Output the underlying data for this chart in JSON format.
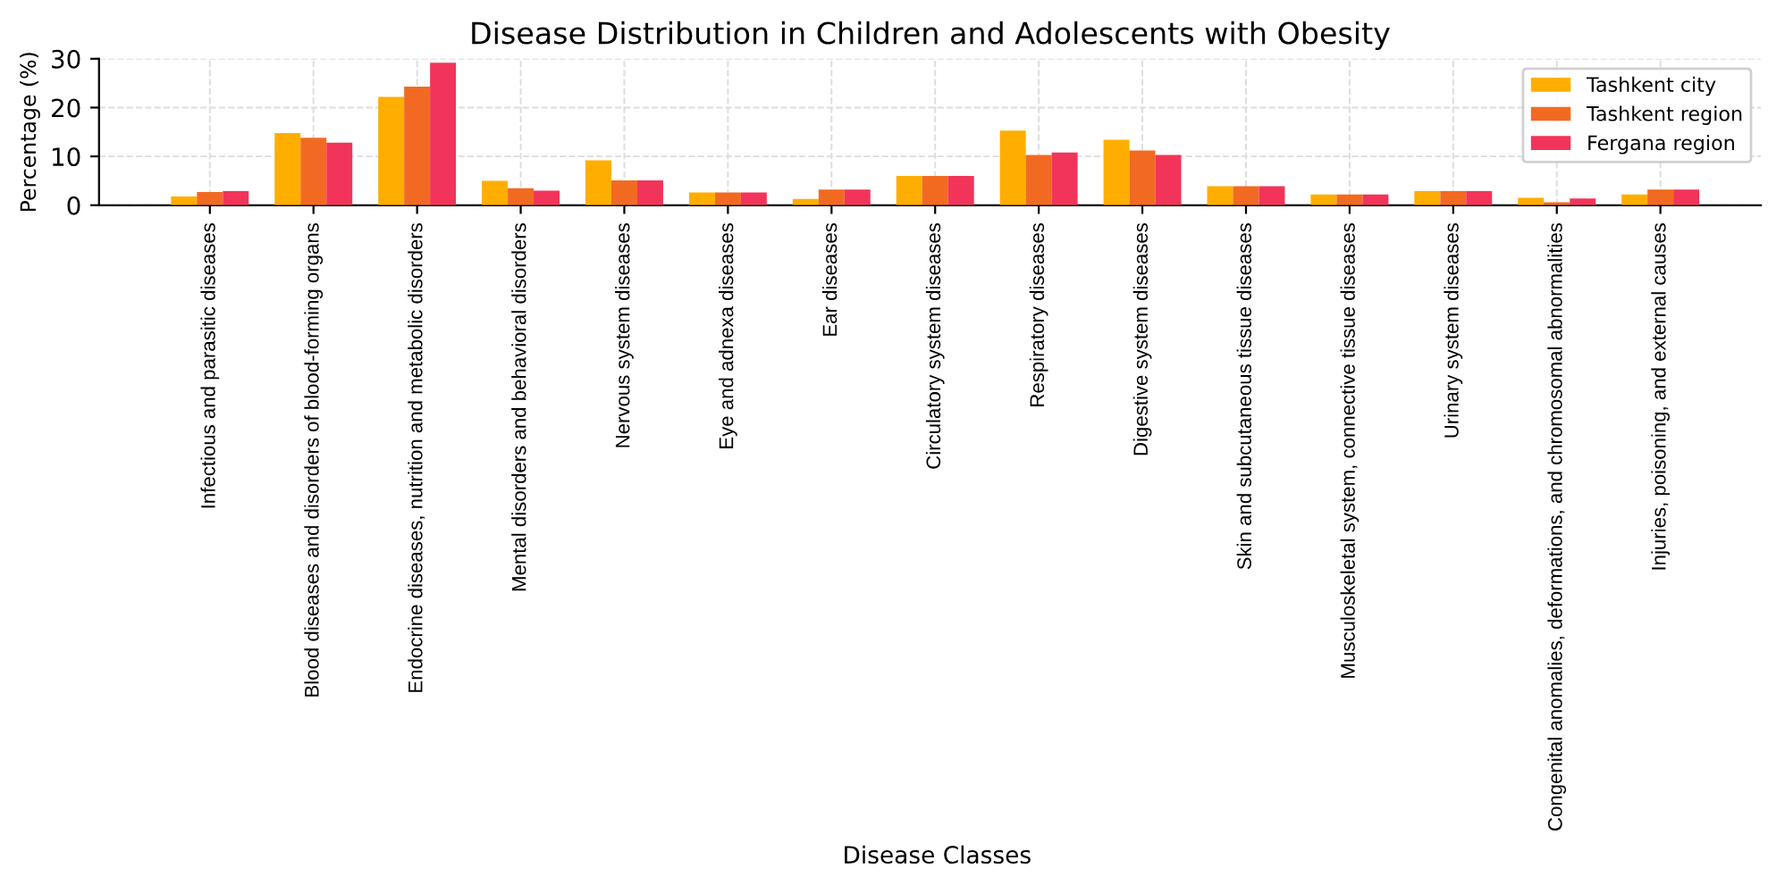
{
  "chart_data": {
    "type": "bar",
    "title": "Disease Distribution in Children and Adolescents with Obesity",
    "xlabel": "Disease Classes",
    "ylabel": "Percentage (%)",
    "categories": [
      "Infectious and parasitic diseases",
      "Blood diseases and disorders of blood-forming organs",
      "Endocrine diseases, nutrition and metabolic disorders",
      "Mental disorders and behavioral disorders",
      "Nervous system diseases",
      "Eye and adnexa diseases",
      "Ear diseases",
      "Circulatory system diseases",
      "Respiratory diseases",
      "Digestive system diseases",
      "Skin and subcutaneous tissue diseases",
      "Musculoskeletal system, connective tissue diseases",
      "Urinary system diseases",
      "Congenital anomalies, deformations, and chromosomal abnormalities",
      "Injuries, poisoning, and external causes"
    ],
    "series": [
      {
        "name": "Tashkent city",
        "color": "#ffae00",
        "values": [
          1.8,
          14.8,
          22.2,
          5.0,
          9.2,
          2.6,
          1.3,
          6.0,
          15.3,
          13.4,
          3.9,
          2.2,
          2.9,
          1.5,
          2.2
        ]
      },
      {
        "name": "Tashkent region",
        "color": "#f26a22",
        "values": [
          2.7,
          13.8,
          24.3,
          3.5,
          5.1,
          2.6,
          3.2,
          6.0,
          10.3,
          11.2,
          3.9,
          2.2,
          2.9,
          0.6,
          3.2
        ]
      },
      {
        "name": "Fergana region",
        "color": "#f2345a",
        "values": [
          2.9,
          12.8,
          29.2,
          3.0,
          5.1,
          2.6,
          3.2,
          6.0,
          10.8,
          10.3,
          3.9,
          2.2,
          2.9,
          1.4,
          3.2
        ]
      }
    ],
    "ylim": [
      0,
      30
    ],
    "yticks": [
      0,
      10,
      20,
      30
    ],
    "grid": true,
    "legend": "top right"
  }
}
